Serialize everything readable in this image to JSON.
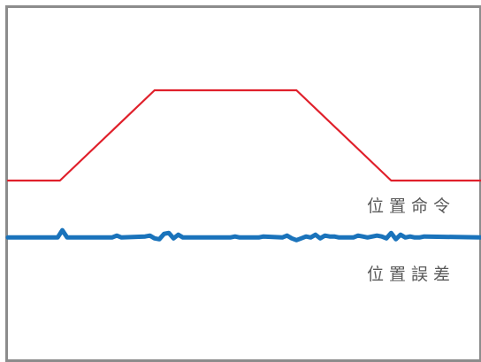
{
  "chart_data": {
    "type": "line",
    "title": "",
    "xlabel": "",
    "ylabel": "",
    "grid": false,
    "xlim": [
      0,
      100
    ],
    "ylim": [
      -30,
      105
    ],
    "series": [
      {
        "name": "位置命令",
        "color": "#e0202b",
        "x": [
          0,
          11,
          31,
          61,
          81,
          100
        ],
        "y": [
          0,
          0,
          100,
          100,
          0,
          0
        ]
      },
      {
        "name": "位置誤差",
        "color": "#1a73bb",
        "x": [
          0,
          10.5,
          11.5,
          12.5,
          22,
          23,
          24,
          29,
          30,
          31,
          32,
          33,
          34,
          35,
          36,
          37,
          47,
          48,
          49,
          53,
          54,
          58,
          59,
          60,
          61,
          62,
          63,
          64,
          65,
          66,
          67,
          68,
          69,
          70,
          73,
          74,
          75,
          76,
          78,
          79,
          80,
          81,
          82,
          83,
          84,
          85,
          86,
          87,
          88,
          100
        ],
        "y": [
          -63,
          -63,
          -55,
          -63,
          -63,
          -61,
          -63,
          -62,
          -61,
          -64,
          -65,
          -59,
          -58,
          -64,
          -60,
          -63,
          -63,
          -62,
          -63,
          -63,
          -62,
          -63,
          -61,
          -64,
          -66,
          -64,
          -62,
          -63,
          -60,
          -64,
          -61,
          -62,
          -62,
          -63,
          -63,
          -61,
          -62,
          -63,
          -61,
          -62,
          -64,
          -58,
          -65,
          -60,
          -63,
          -62,
          -63,
          -63,
          -62,
          -63
        ]
      }
    ]
  }
}
